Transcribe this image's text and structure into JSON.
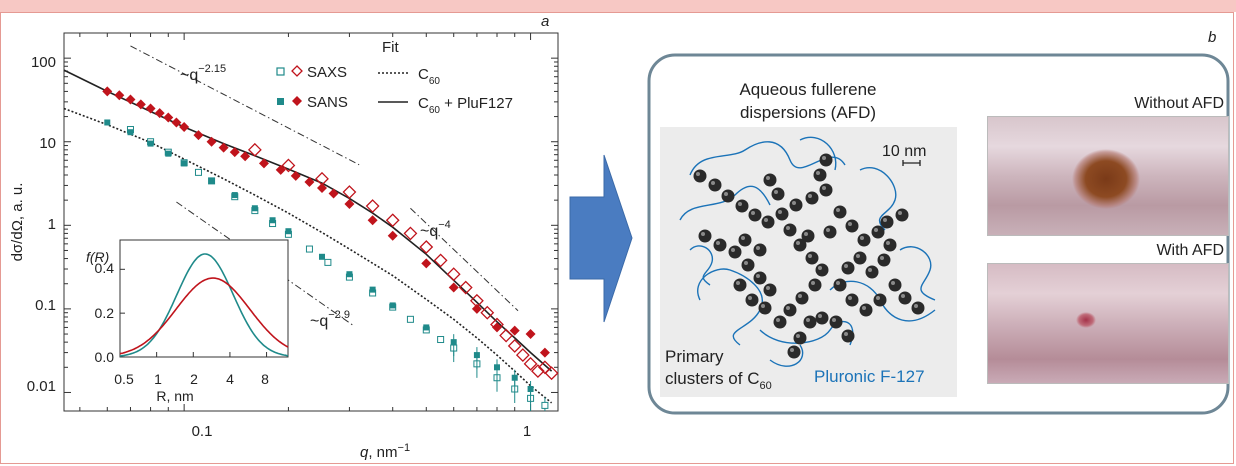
{
  "panel_a": {
    "label": "a",
    "xlabel_sym": "q",
    "xlabel_unit": ", nm",
    "xlabel_exp": "−1",
    "ylabel": "dσ/dΩ, a. u.",
    "x_ticks": [
      "0.1",
      "1"
    ],
    "y_ticks": [
      "100",
      "10",
      "1",
      "0.1",
      "0.01"
    ],
    "legend": {
      "fit_header": "Fit",
      "saxs": "SAXS",
      "sans": "SANS",
      "fit_c60": "C",
      "fit_c60_sub": "60",
      "fit_c60_plu": "C",
      "fit_c60_plu_sub": "60",
      "fit_c60_plu_tail": " + PluF127"
    },
    "slopes": [
      {
        "text": "~q",
        "exp": "−2.15"
      },
      {
        "text": "~q",
        "exp": "−4"
      },
      {
        "text": "~q",
        "exp": "−2.9"
      }
    ],
    "inset": {
      "ylabel": "f(R)",
      "xlabel": "R, nm",
      "x_ticks": [
        "0.5",
        "1",
        "2",
        "4",
        "8"
      ],
      "y_ticks": [
        "0.4",
        "0.2",
        "0.0"
      ]
    }
  },
  "panel_b": {
    "label": "b",
    "title_line1": "Aqueous fullerene",
    "title_line2": "dispersions (AFD)",
    "scale": "10 nm",
    "primary_line1": "Primary",
    "primary_line2": "clusters of C",
    "primary_sub": "60",
    "pluronic": "Pluronic F-127",
    "without": "Without AFD",
    "with": "With AFD"
  },
  "colors": {
    "teal": "#1f8a8a",
    "red": "#c0141c",
    "arrow": "#4a7cc1",
    "frame": "#6e8796",
    "pluronic": "#1b73b8"
  },
  "chart_data": {
    "type": "scatter",
    "x_scale": "log",
    "y_scale": "log",
    "xlim": [
      0.045,
      1.2
    ],
    "ylim": [
      0.006,
      200
    ],
    "xlabel": "q, nm−1",
    "ylabel": "dσ/dΩ, a. u.",
    "series": [
      {
        "name": "SAXS",
        "sample": "C60 + PluF127",
        "marker": "open-diamond",
        "color": "#c0141c",
        "x": [
          0.16,
          0.2,
          0.25,
          0.3,
          0.35,
          0.4,
          0.45,
          0.5,
          0.55,
          0.6,
          0.65,
          0.7,
          0.75,
          0.8,
          0.85,
          0.9,
          0.95,
          1.0,
          1.05,
          1.1,
          1.15
        ],
        "y": [
          8,
          5.2,
          3.6,
          2.5,
          1.7,
          1.15,
          0.8,
          0.55,
          0.38,
          0.26,
          0.18,
          0.125,
          0.09,
          0.065,
          0.048,
          0.036,
          0.028,
          0.022,
          0.018,
          0.02,
          0.017
        ]
      },
      {
        "name": "SANS",
        "sample": "C60 + PluF127",
        "marker": "filled-diamond",
        "color": "#c0141c",
        "x": [
          0.06,
          0.065,
          0.07,
          0.075,
          0.08,
          0.085,
          0.09,
          0.095,
          0.1,
          0.11,
          0.12,
          0.13,
          0.14,
          0.15,
          0.17,
          0.19,
          0.21,
          0.23,
          0.25,
          0.27,
          0.3,
          0.35,
          0.4,
          0.5,
          0.6,
          0.7,
          0.8,
          0.9,
          1.0,
          1.1
        ],
        "y": [
          40,
          36,
          32,
          28,
          25,
          22,
          19.5,
          17,
          15,
          12,
          10,
          8.5,
          7.5,
          6.7,
          5.5,
          4.6,
          3.9,
          3.3,
          2.8,
          2.4,
          1.8,
          1.15,
          0.75,
          0.35,
          0.18,
          0.1,
          0.06,
          0.055,
          0.05,
          0.03
        ]
      },
      {
        "name": "SAXS",
        "sample": "C60",
        "marker": "open-square",
        "color": "#1f8a8a",
        "x": [
          0.07,
          0.08,
          0.09,
          0.1,
          0.11,
          0.12,
          0.14,
          0.16,
          0.18,
          0.2,
          0.23,
          0.26,
          0.3,
          0.35,
          0.4,
          0.45,
          0.5,
          0.55,
          0.6,
          0.7,
          0.8,
          0.9,
          1.0,
          1.1
        ],
        "y": [
          14,
          10,
          7.5,
          5.6,
          4.3,
          3.4,
          2.2,
          1.5,
          1.05,
          0.78,
          0.52,
          0.36,
          0.24,
          0.155,
          0.105,
          0.075,
          0.056,
          0.043,
          0.034,
          0.022,
          0.015,
          0.011,
          0.0085,
          0.007
        ]
      },
      {
        "name": "SANS",
        "sample": "C60",
        "marker": "filled-square",
        "color": "#1f8a8a",
        "x": [
          0.06,
          0.07,
          0.08,
          0.09,
          0.1,
          0.12,
          0.14,
          0.16,
          0.18,
          0.2,
          0.25,
          0.3,
          0.35,
          0.4,
          0.5,
          0.6,
          0.7,
          0.8,
          0.9,
          1.0
        ],
        "y": [
          17,
          13,
          9.5,
          7.2,
          5.5,
          3.4,
          2.3,
          1.6,
          1.15,
          0.85,
          0.42,
          0.26,
          0.17,
          0.11,
          0.06,
          0.04,
          0.028,
          0.02,
          0.015,
          0.011
        ]
      },
      {
        "name": "C60",
        "marker": "dotted-line",
        "color": "#222222",
        "x": [
          0.045,
          0.06,
          0.08,
          0.1,
          0.13,
          0.16,
          0.2,
          0.25,
          0.3,
          0.4,
          0.5,
          0.6,
          0.7,
          0.8,
          0.9,
          1.0,
          1.15
        ],
        "y": [
          25,
          16,
          9.8,
          6.2,
          3.6,
          2.3,
          1.4,
          0.82,
          0.52,
          0.25,
          0.13,
          0.075,
          0.045,
          0.028,
          0.018,
          0.012,
          0.0075
        ]
      },
      {
        "name": "C60 + PluF127",
        "marker": "solid-line",
        "color": "#222222",
        "x": [
          0.045,
          0.06,
          0.08,
          0.1,
          0.13,
          0.16,
          0.2,
          0.25,
          0.3,
          0.35,
          0.4,
          0.5,
          0.6,
          0.7,
          0.8,
          0.9,
          1.0,
          1.15
        ],
        "y": [
          72,
          40,
          23,
          15,
          9.5,
          6.8,
          4.7,
          3.2,
          2.1,
          1.4,
          0.95,
          0.45,
          0.22,
          0.12,
          0.07,
          0.045,
          0.03,
          0.018
        ]
      }
    ],
    "inset_series": [
      {
        "name": "teal distribution",
        "color": "#1f8a8a",
        "peak_R": 2.5,
        "peak_f": 0.47,
        "sigma_log": 0.42
      },
      {
        "name": "red distribution",
        "color": "#c0141c",
        "peak_R": 2.9,
        "peak_f": 0.36,
        "sigma_log": 0.55
      }
    ],
    "inset_xlim": [
      0.5,
      12
    ],
    "inset_ylim": [
      0,
      0.52
    ]
  }
}
